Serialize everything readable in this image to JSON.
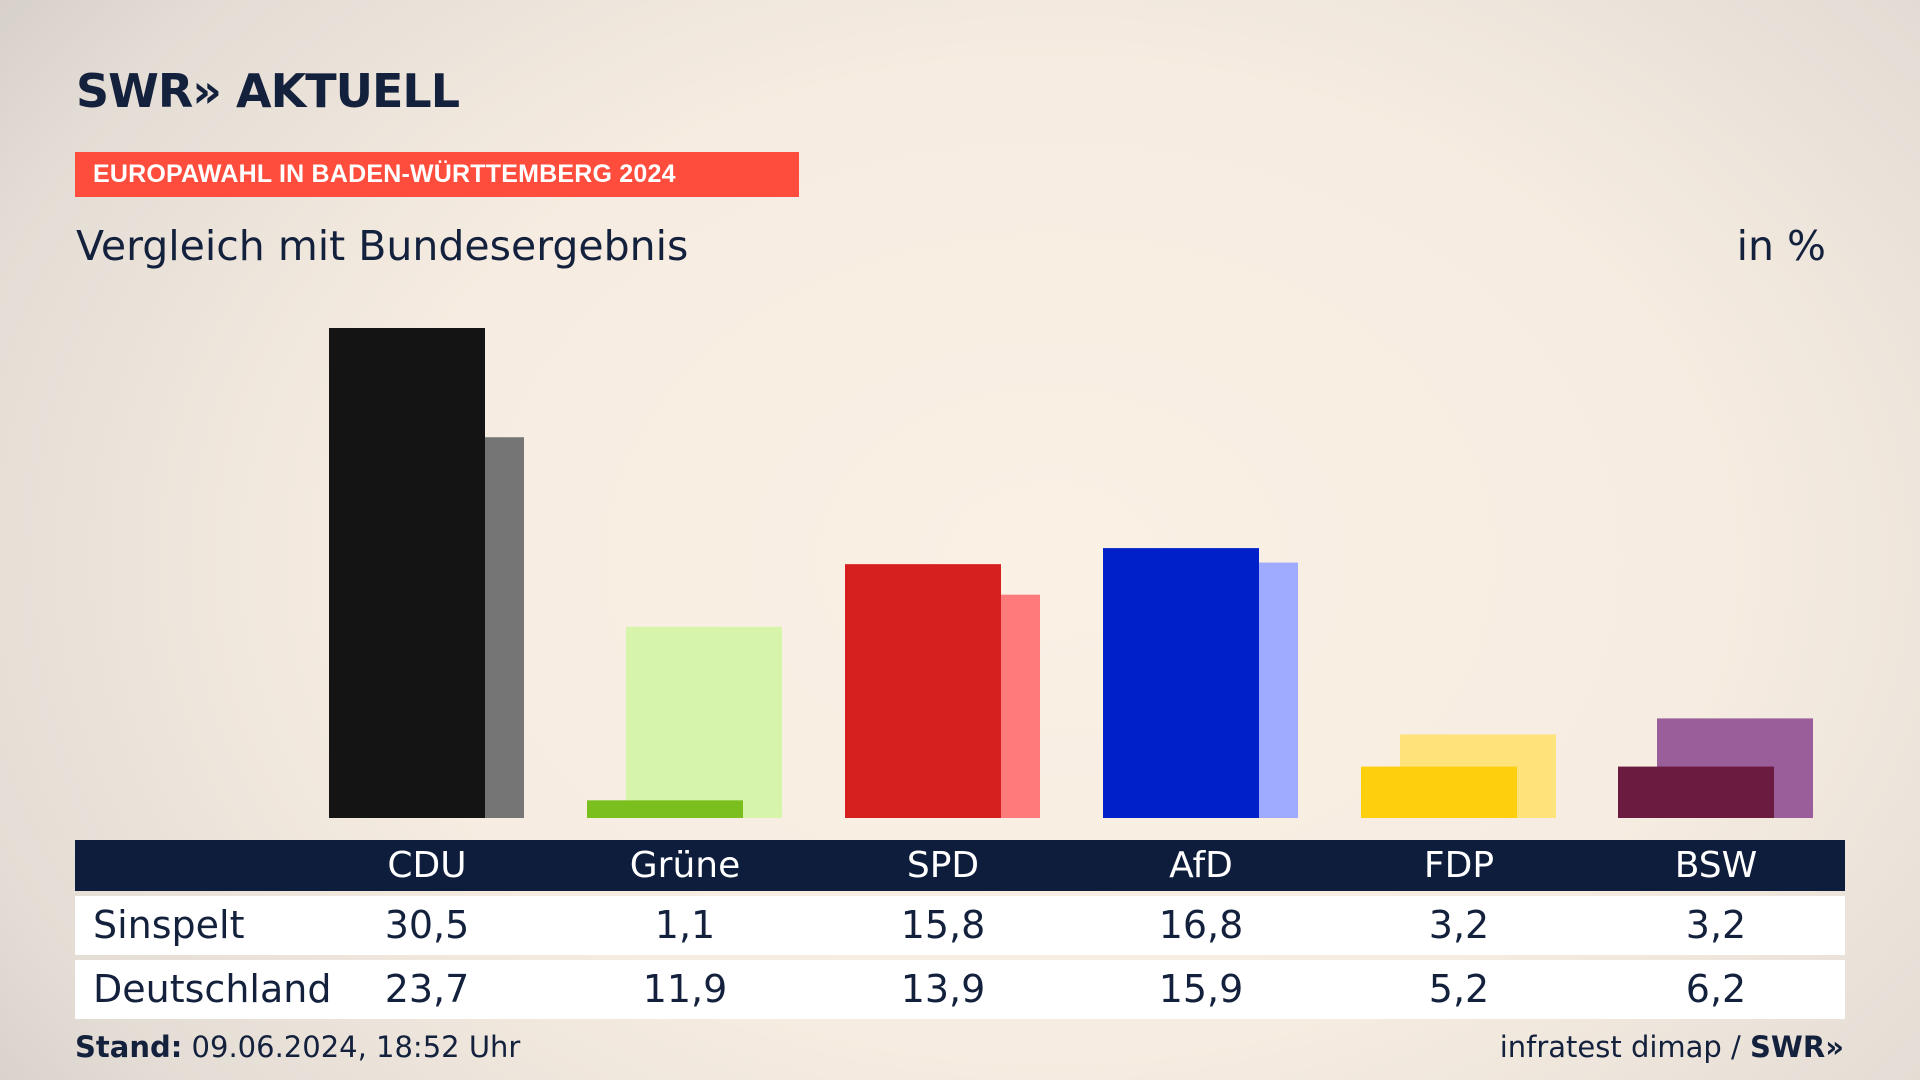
{
  "header": {
    "logo": "SWR» AKTUELL",
    "banner": "EUROPAWAHL IN BADEN-WÜRTTEMBERG 2024",
    "subtitle": "Vergleich mit Bundesergebnis",
    "unit": "in %"
  },
  "chart_data": {
    "type": "bar",
    "title": "Vergleich mit Bundesergebnis",
    "unit": "in %",
    "categories": [
      "CDU",
      "Grüne",
      "SPD",
      "AfD",
      "FDP",
      "BSW"
    ],
    "series": [
      {
        "name": "Sinspelt",
        "values": [
          30.5,
          1.1,
          15.8,
          16.8,
          3.2,
          3.2
        ]
      },
      {
        "name": "Deutschland",
        "values": [
          23.7,
          11.9,
          13.9,
          15.9,
          5.2,
          6.2
        ]
      }
    ],
    "display_values": {
      "Sinspelt": [
        "30,5",
        "1,1",
        "15,8",
        "16,8",
        "3,2",
        "3,2"
      ],
      "Deutschland": [
        "23,7",
        "11,9",
        "13,9",
        "15,9",
        "5,2",
        "6,2"
      ]
    },
    "colors": {
      "primary": [
        "#141414",
        "#7abf1e",
        "#d61f1f",
        "#0021c9",
        "#fecf0c",
        "#6b1a40"
      ],
      "secondary": [
        "#757575",
        "#d7f5aa",
        "#ff7a7a",
        "#9eabff",
        "#fee27a",
        "#9a5f9b"
      ]
    },
    "ylim": [
      0,
      31
    ],
    "grid": false,
    "legend": "table-below"
  },
  "footer": {
    "stand_label": "Stand:",
    "stand_value": "09.06.2024, 18:52 Uhr",
    "source": "infratest dimap /",
    "source_logo": "SWR»"
  }
}
